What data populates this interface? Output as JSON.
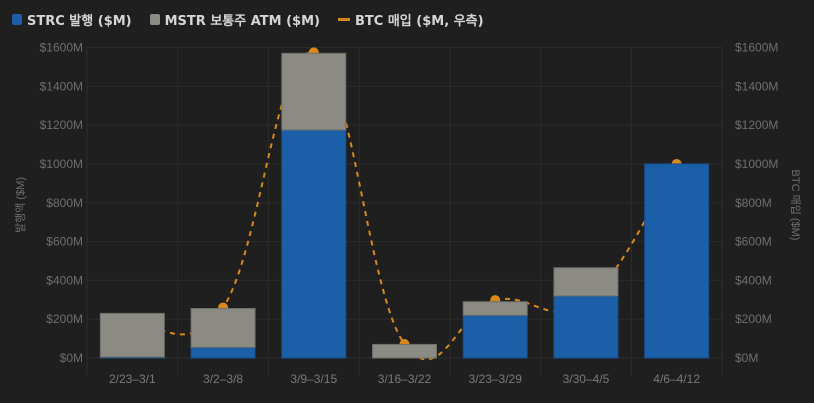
{
  "legend": {
    "items": [
      {
        "label": "STRC 발행 ($M)",
        "type": "box",
        "color": "#1b5fa8"
      },
      {
        "label": "MSTR 보통주 ATM ($M)",
        "type": "box",
        "color": "#8b8b84"
      },
      {
        "label": "BTC 매입 ($M, 우측)",
        "type": "line",
        "color": "#d9891c"
      }
    ]
  },
  "axes": {
    "left_label": "발행액 ($M)",
    "right_label": "BTC 매입 ($M)",
    "ticks": [
      "$0M",
      "$200M",
      "$400M",
      "$600M",
      "$800M",
      "$1000M",
      "$1200M",
      "$1400M",
      "$1600M"
    ]
  },
  "colors": {
    "background": "#1f1f1f",
    "grid": "#2c2c2c",
    "strc": "#1b5fa8",
    "mstr": "#8b8b84",
    "btc": "#d9891c",
    "tick_text": "#6e6e6e"
  },
  "chart_data": {
    "type": "bar",
    "stacked": true,
    "title": "",
    "xlabel": "",
    "ylabel": "발행액 ($M)",
    "y2label": "BTC 매입 ($M)",
    "ylim": [
      0,
      1600
    ],
    "y2lim": [
      0,
      1600
    ],
    "grid": true,
    "legend_position": "top-left",
    "categories": [
      "2/23–3/1",
      "3/2–3/8",
      "3/9–3/15",
      "3/16–3/22",
      "3/23–3/29",
      "3/30–4/5",
      "4/6–4/12"
    ],
    "series": [
      {
        "name": "STRC 발행 ($M)",
        "type": "bar",
        "axis": "left",
        "values": [
          5,
          55,
          1175,
          0,
          220,
          320,
          1000
        ]
      },
      {
        "name": "MSTR 보통주 ATM ($M)",
        "type": "bar",
        "axis": "left",
        "values": [
          225,
          200,
          395,
          70,
          70,
          145,
          0
        ]
      },
      {
        "name": "BTC 매입 ($M, 우측)",
        "type": "line",
        "style": "dashed",
        "axis": "right",
        "values": [
          195,
          260,
          1575,
          72,
          298,
          290,
          1000
        ]
      }
    ]
  }
}
